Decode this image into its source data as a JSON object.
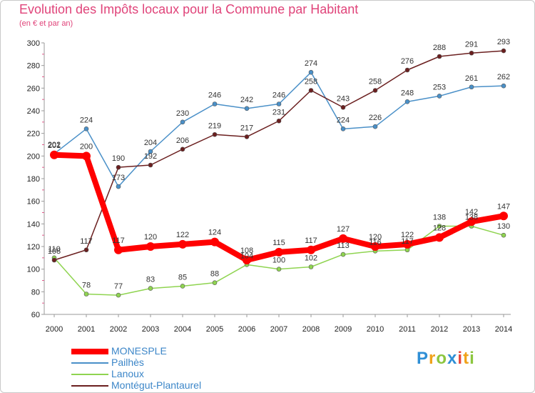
{
  "chart_data": {
    "type": "line",
    "title": "Evolution des Impôts locaux pour la Commune par Habitant",
    "subtitle": "(en € et par an)",
    "xlabel": "",
    "ylabel": "",
    "ylim": [
      60,
      300
    ],
    "yticks": [
      "60",
      "80",
      "100",
      "120",
      "140",
      "160",
      "180",
      "200",
      "220",
      "240",
      "260",
      "280",
      "300"
    ],
    "categories": [
      "2000",
      "2001",
      "2002",
      "2003",
      "2004",
      "2005",
      "2006",
      "2007",
      "2008",
      "2009",
      "2010",
      "2011",
      "2012",
      "2013",
      "2014"
    ],
    "series": [
      {
        "name": "MONESPLE",
        "color": "#ff0000",
        "emphasis": true,
        "values": [
          201,
          200,
          117,
          120,
          122,
          124,
          108,
          115,
          117,
          127,
          120,
          122,
          128,
          142,
          147
        ]
      },
      {
        "name": "Pailhès",
        "color": "#4a90c8",
        "values": [
          202,
          224,
          173,
          204,
          230,
          246,
          242,
          246,
          274,
          224,
          226,
          248,
          253,
          261,
          262
        ]
      },
      {
        "name": "Lanoux",
        "color": "#8fd450",
        "values": [
          110,
          78,
          77,
          83,
          85,
          88,
          104,
          100,
          102,
          113,
          116,
          117,
          138,
          138,
          130
        ]
      },
      {
        "name": "Montégut-Plantaurel",
        "color": "#6b1f1f",
        "values": [
          108,
          117,
          190,
          192,
          206,
          219,
          217,
          231,
          258,
          243,
          258,
          276,
          288,
          291,
          293
        ]
      }
    ],
    "legend_position": "bottom-left",
    "grid": false
  },
  "logo": {
    "letters": [
      "P",
      "r",
      "o",
      "x",
      "i",
      "t",
      "i"
    ],
    "colors": [
      "#2f8fd6",
      "#f0a21a",
      "#8cc63f",
      "#2f8fd6",
      "#e8473c",
      "#f0a21a",
      "#8cc63f"
    ]
  }
}
